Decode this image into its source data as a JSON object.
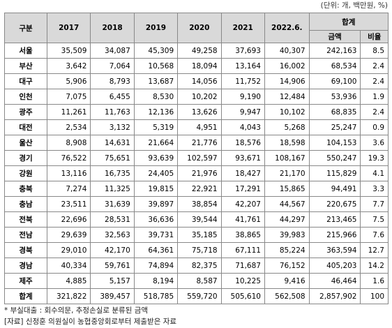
{
  "unit": "(단위: 개, 백만원, %)",
  "table": {
    "header": {
      "region": "구분",
      "years": [
        "2017",
        "2018",
        "2019",
        "2020",
        "2021",
        "2022.6."
      ],
      "total": "합계",
      "total_sub": [
        "금액",
        "비율"
      ]
    },
    "rows": [
      [
        "서울",
        "35,509",
        "34,087",
        "45,309",
        "49,258",
        "37,693",
        "40,307",
        "242,163",
        "8.5"
      ],
      [
        "부산",
        "3,642",
        "7,064",
        "10,568",
        "18,094",
        "13,164",
        "16,002",
        "68,534",
        "2.4"
      ],
      [
        "대구",
        "5,906",
        "8,793",
        "13,687",
        "14,056",
        "11,752",
        "14,906",
        "69,100",
        "2.4"
      ],
      [
        "인천",
        "7,075",
        "6,455",
        "8,530",
        "10,202",
        "9,190",
        "12,484",
        "53,936",
        "1.9"
      ],
      [
        "광주",
        "11,261",
        "11,763",
        "12,136",
        "13,626",
        "9,947",
        "10,102",
        "68,835",
        "2.4"
      ],
      [
        "대전",
        "2,534",
        "3,132",
        "5,319",
        "4,951",
        "4,043",
        "5,268",
        "25,247",
        "0.9"
      ],
      [
        "울산",
        "8,908",
        "14,631",
        "21,664",
        "21,776",
        "18,576",
        "18,598",
        "104,153",
        "3.6"
      ],
      [
        "경기",
        "76,522",
        "75,651",
        "93,639",
        "102,597",
        "93,671",
        "108,167",
        "550,247",
        "19.3"
      ],
      [
        "강원",
        "13,116",
        "16,735",
        "24,405",
        "21,976",
        "18,427",
        "21,170",
        "115,829",
        "4.1"
      ],
      [
        "충북",
        "7,274",
        "11,325",
        "19,815",
        "22,921",
        "17,291",
        "15,865",
        "94,491",
        "3.3"
      ],
      [
        "충남",
        "23,511",
        "31,639",
        "39,897",
        "38,854",
        "42,207",
        "44,567",
        "220,675",
        "7.7"
      ],
      [
        "전북",
        "22,696",
        "28,531",
        "36,636",
        "39,544",
        "41,761",
        "44,297",
        "213,465",
        "7.5"
      ],
      [
        "전남",
        "29,639",
        "32,563",
        "39,731",
        "35,185",
        "38,865",
        "39,983",
        "215,966",
        "7.6"
      ],
      [
        "경북",
        "29,010",
        "42,170",
        "64,361",
        "75,718",
        "67,111",
        "85,224",
        "363,594",
        "12.7"
      ],
      [
        "경남",
        "40,334",
        "59,761",
        "74,894",
        "82,375",
        "71,687",
        "76,152",
        "405,203",
        "14.2"
      ],
      [
        "제주",
        "4,885",
        "5,157",
        "8,194",
        "8,587",
        "10,225",
        "9,416",
        "46,464",
        "1.6"
      ],
      [
        "합계",
        "321,822",
        "389,457",
        "518,785",
        "559,720",
        "505,610",
        "562,508",
        "2,857,902",
        "100"
      ]
    ]
  },
  "notes": [
    "* 부실대출 : 회수의문, 추정손실로 분류된 금액",
    "[자료] 신정훈 의원실이 농협중앙회로부터 제출받은 자료"
  ]
}
